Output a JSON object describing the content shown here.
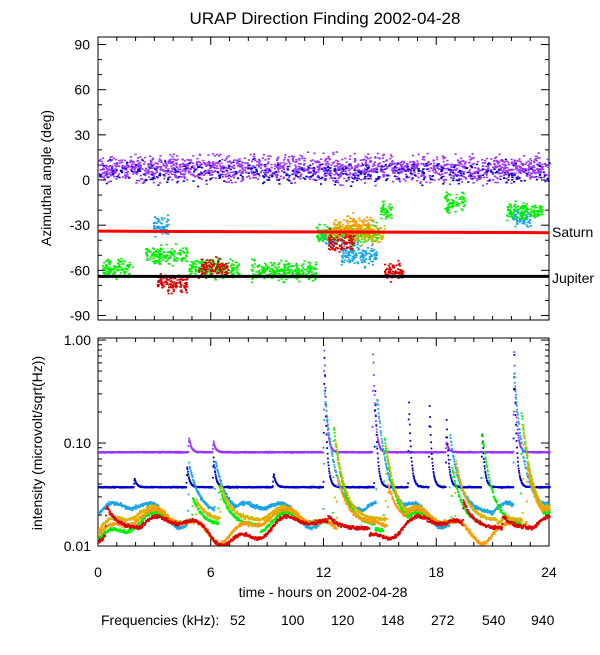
{
  "chart_data": [
    {
      "type": "scatter",
      "title": "URAP Direction Finding  2002-04-28",
      "ylabel": "Azimuthal angle (deg)",
      "ylim": [
        -93,
        95
      ],
      "xlim": [
        0,
        24
      ],
      "yticks": [
        90,
        60,
        30,
        0,
        -30,
        -60,
        -90
      ],
      "reference_lines": [
        {
          "name": "Saturn",
          "label": "Saturn",
          "color": "#ff0000",
          "y_start": -34,
          "y_end": -35
        },
        {
          "name": "Jupiter",
          "label": "Jupiter",
          "color": "#000000",
          "y_start": -64,
          "y_end": -64
        }
      ],
      "series": [
        {
          "name": "940 kHz",
          "color": "#9933ff",
          "mean_level": 8,
          "spread": 8,
          "x_range": [
            0,
            24
          ]
        },
        {
          "name": "540 kHz",
          "color": "#0000cc",
          "mean_level": 5,
          "spread": 7,
          "x_range": [
            0,
            24
          ]
        },
        {
          "name": "272 kHz",
          "color": "#1aa3e6",
          "clusters": [
            [
              2.9,
              3.7,
              -30
            ],
            [
              11.8,
              13.8,
              -38
            ],
            [
              12.9,
              14.8,
              -50
            ],
            [
              22.0,
              23.0,
              -25
            ]
          ]
        },
        {
          "name": "148 kHz",
          "color": "#00ee00",
          "clusters": [
            [
              0.2,
              1.8,
              -58
            ],
            [
              2.5,
              4.7,
              -50
            ],
            [
              4.8,
              7.5,
              -58
            ],
            [
              8.1,
              11.6,
              -60
            ],
            [
              11.6,
              14.9,
              -35
            ],
            [
              15.0,
              15.6,
              -20
            ],
            [
              18.4,
              19.5,
              -15
            ],
            [
              21.7,
              23.6,
              -20
            ]
          ]
        },
        {
          "name": "120 kHz",
          "color": "#d9b300",
          "clusters": [
            [
              12.1,
              15.2,
              -35
            ]
          ]
        },
        {
          "name": "100 kHz",
          "color": "#ff9900",
          "clusters": [
            [
              12.5,
              14.6,
              -30
            ]
          ]
        },
        {
          "name": "52 kHz",
          "color": "#dd0000",
          "clusters": [
            [
              3.1,
              4.7,
              -68
            ],
            [
              5.3,
              6.9,
              -58
            ],
            [
              12.2,
              13.6,
              -40
            ],
            [
              15.2,
              16.2,
              -60
            ]
          ]
        }
      ]
    },
    {
      "type": "line",
      "ylabel": "intensity (microvolt/sqrt(Hz))",
      "xlabel": "time - hours on 2002-04-28",
      "yscale": "log",
      "ylim": [
        0.01,
        1.0
      ],
      "xlim": [
        0,
        24
      ],
      "xticks": [
        0,
        6,
        12,
        18,
        24
      ],
      "ytick_labels": [
        "1.00",
        "0.10",
        "0.01"
      ],
      "series": [
        {
          "name": "940",
          "color": "#9933ff",
          "baseline": 0.083,
          "bursts": [
            [
              4.8,
              0.115
            ],
            [
              6.1,
              0.105
            ],
            [
              12.0,
              0.9
            ],
            [
              14.6,
              0.82
            ],
            [
              18.5,
              0.105
            ],
            [
              22.1,
              0.85
            ]
          ]
        },
        {
          "name": "540",
          "color": "#0000cc",
          "baseline": 0.038,
          "bursts": [
            [
              1.9,
              0.046
            ],
            [
              4.7,
              0.06
            ],
            [
              6.1,
              0.075
            ],
            [
              9.3,
              0.052
            ],
            [
              12.0,
              0.8
            ],
            [
              14.7,
              0.36
            ],
            [
              16.5,
              0.28
            ],
            [
              17.6,
              0.25
            ],
            [
              18.5,
              0.18
            ],
            [
              20.4,
              0.14
            ],
            [
              22.1,
              0.8
            ]
          ]
        },
        {
          "name": "272",
          "color": "#1aa3e6",
          "baseline": 0.021,
          "bursts": [
            [
              4.8,
              0.065
            ],
            [
              6.2,
              0.07
            ],
            [
              12.0,
              0.35
            ],
            [
              14.8,
              0.3
            ],
            [
              18.7,
              0.12
            ],
            [
              22.1,
              0.5
            ]
          ]
        },
        {
          "name": "148",
          "color": "#00ee00",
          "baseline": 0.016,
          "bursts": [
            [
              5.0,
              0.03
            ],
            [
              6.4,
              0.04
            ],
            [
              12.5,
              0.15
            ],
            [
              15.2,
              0.12
            ],
            [
              18.8,
              0.06
            ],
            [
              20.4,
              0.13
            ],
            [
              22.5,
              0.2
            ]
          ]
        },
        {
          "name": "120",
          "color": "#d9b300",
          "baseline": 0.018,
          "bursts": [
            [
              5.2,
              0.028
            ],
            [
              6.5,
              0.04
            ],
            [
              12.6,
              0.11
            ],
            [
              15.3,
              0.09
            ],
            [
              19.0,
              0.07
            ],
            [
              22.6,
              0.15
            ]
          ]
        },
        {
          "name": "100",
          "color": "#ff9900",
          "baseline": 0.017,
          "bursts": [
            [
              12.7,
              0.05
            ],
            [
              15.4,
              0.04
            ],
            [
              22.8,
              0.06
            ]
          ]
        },
        {
          "name": "52",
          "color": "#dd0000",
          "baseline": 0.015,
          "bursts": [
            [
              0.4,
              0.025
            ],
            [
              12.2,
              0.02
            ],
            [
              19.4,
              0.028
            ],
            [
              21.5,
              0.02
            ]
          ]
        }
      ]
    }
  ],
  "legend": {
    "label": "Frequencies (kHz):",
    "items": [
      {
        "label": "52",
        "color": "#dd0000"
      },
      {
        "label": "100",
        "color": "#ff9900"
      },
      {
        "label": "120",
        "color": "#d9b300"
      },
      {
        "label": "148",
        "color": "#00ee00"
      },
      {
        "label": "272",
        "color": "#1aa3e6"
      },
      {
        "label": "540",
        "color": "#0000cc"
      },
      {
        "label": "940",
        "color": "#9933ff"
      }
    ]
  }
}
